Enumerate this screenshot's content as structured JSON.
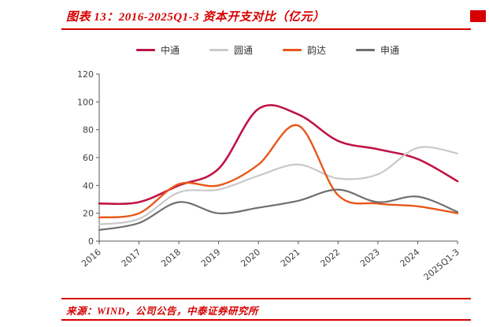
{
  "header": {
    "title": "图表 13：2016-2025Q1-3 资本开支对比（亿元）"
  },
  "footer": {
    "source": "来源：WIND，公司公告，中泰证券研究所"
  },
  "colors": {
    "accent_red": "#d60000",
    "axis": "#595959",
    "tick_text": "#404040"
  },
  "chart_data": {
    "type": "line",
    "title": "2016-2025Q1-3 资本开支对比（亿元）",
    "categories": [
      "2016",
      "2017",
      "2018",
      "2019",
      "2020",
      "2021",
      "2022",
      "2023",
      "2024",
      "2025Q1-3"
    ],
    "series": [
      {
        "id": "zhongtong",
        "name": "中通",
        "color": "#c01445",
        "width": 2.6,
        "values": [
          27,
          28,
          40,
          52,
          95,
          91,
          72,
          66,
          59,
          43
        ]
      },
      {
        "id": "yuantong",
        "name": "圆通",
        "color": "#c9c9c9",
        "width": 2.2,
        "values": [
          12,
          16,
          35,
          37,
          47,
          55,
          45,
          48,
          67,
          63
        ]
      },
      {
        "id": "yunda",
        "name": "韵达",
        "color": "#e8571a",
        "width": 2.4,
        "values": [
          17,
          20,
          41,
          40,
          55,
          83,
          33,
          27,
          25,
          20
        ]
      },
      {
        "id": "shentong",
        "name": "申通",
        "color": "#6f6f6f",
        "width": 2.2,
        "values": [
          8,
          13,
          28,
          20,
          24,
          29,
          37,
          28,
          32,
          21
        ]
      }
    ],
    "ylim": [
      0,
      120
    ],
    "yticks": [
      0,
      20,
      40,
      60,
      80,
      100,
      120
    ],
    "xlabel": "",
    "ylabel": "",
    "legend_position": "top",
    "grid": false
  }
}
